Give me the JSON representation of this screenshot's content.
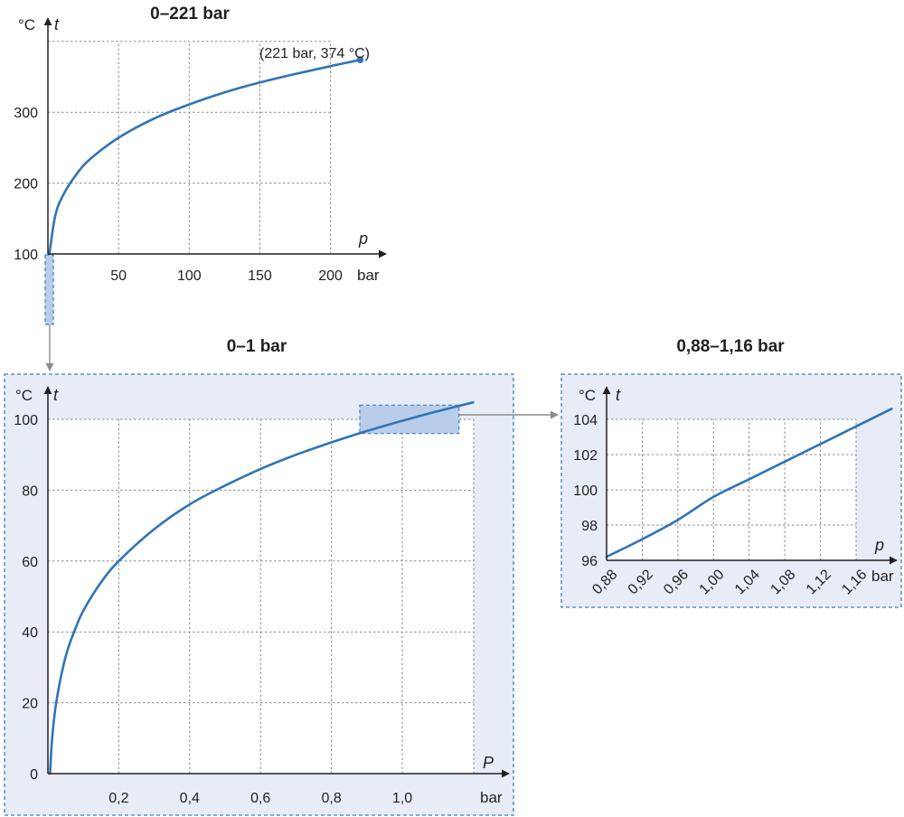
{
  "chart_data": [
    {
      "type": "line",
      "title": "0–221 bar",
      "xlabel": "p",
      "xunit": "bar",
      "ylabel": "t",
      "yunit": "°C",
      "xlim": [
        0,
        221
      ],
      "ylim": [
        100,
        374
      ],
      "xticks": [
        "50",
        "100",
        "150",
        "200"
      ],
      "yticks": [
        "100",
        "200",
        "300"
      ],
      "grid": true,
      "annotation": "(221 bar, 374 °C)",
      "series": [
        {
          "x": [
            1,
            5,
            10,
            20,
            30,
            50,
            75,
            100,
            125,
            150,
            175,
            200,
            221
          ],
          "y": [
            100,
            152,
            180,
            212,
            234,
            264,
            291,
            311,
            328,
            342,
            354,
            365,
            374
          ]
        }
      ]
    },
    {
      "type": "line",
      "title": "0–1 bar",
      "xlabel": "P",
      "xunit": "bar",
      "ylabel": "t",
      "yunit": "°C",
      "xlim": [
        0,
        1.2
      ],
      "ylim": [
        0,
        104
      ],
      "xticks": [
        "0,2",
        "0,4",
        "0,6",
        "0,8",
        "1,0"
      ],
      "yticks": [
        "0",
        "20",
        "40",
        "60",
        "80",
        "100"
      ],
      "grid": true,
      "series": [
        {
          "x": [
            0.006,
            0.012,
            0.025,
            0.05,
            0.075,
            0.1,
            0.15,
            0.2,
            0.3,
            0.4,
            0.5,
            0.6,
            0.7,
            0.8,
            0.9,
            1.0,
            1.1,
            1.2
          ],
          "y": [
            0,
            10,
            21,
            33,
            40.3,
            46,
            54,
            60,
            69,
            76,
            81.3,
            86,
            90,
            93.5,
            96.7,
            99.6,
            102.3,
            104.8
          ]
        }
      ]
    },
    {
      "type": "line",
      "title": "0,88–1,16 bar",
      "xlabel": "p",
      "xunit": "bar",
      "ylabel": "t",
      "yunit": "°C",
      "xlim": [
        0.88,
        1.16
      ],
      "ylim": [
        96,
        104
      ],
      "xticks": [
        "0,88",
        "0,92",
        "0,96",
        "1,00",
        "1,04",
        "1,08",
        "1,12",
        "1,16"
      ],
      "yticks": [
        "96",
        "98",
        "100",
        "102",
        "104"
      ],
      "grid": true,
      "series": [
        {
          "x": [
            0.88,
            0.92,
            0.96,
            1.0,
            1.04,
            1.08,
            1.12,
            1.16,
            1.2
          ],
          "y": [
            96.2,
            97.2,
            98.3,
            99.6,
            100.6,
            101.6,
            102.6,
            103.6,
            104.6
          ]
        }
      ]
    }
  ],
  "colors": {
    "curve": "#2f74b5",
    "panel": "#e7ecf7",
    "border": "#3d7ec4",
    "highlight": "#b9cdea"
  }
}
